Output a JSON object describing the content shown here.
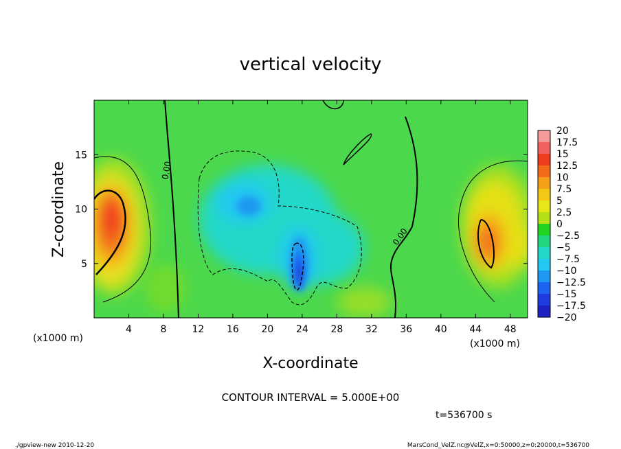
{
  "chart_data": {
    "type": "heatmap",
    "title": "vertical velocity",
    "xlabel": "X-coordinate",
    "ylabel": "Z-coordinate",
    "x_unit_label": "(x1000 m)",
    "y_unit_label": "(x1000 m)",
    "xlim": [
      0,
      50
    ],
    "ylim": [
      0,
      20
    ],
    "x_ticks": [
      4,
      8,
      12,
      16,
      20,
      24,
      28,
      32,
      36,
      40,
      44,
      48
    ],
    "y_ticks": [
      5,
      10,
      15
    ],
    "contour_interval_text": "CONTOUR INTERVAL = 5.000E+00",
    "contour_labels": [
      "0.00",
      "0.00"
    ],
    "colorbar": {
      "levels": [
        "20",
        "17.5",
        "15",
        "12.5",
        "10",
        "7.5",
        "5",
        "2.5",
        "0",
        "-2.5",
        "-5",
        "-7.5",
        "-10",
        "-12.5",
        "-15",
        "-17.5",
        "-20"
      ],
      "colors": [
        "#f49a9a",
        "#f26060",
        "#f03c1e",
        "#f26a1a",
        "#f5a018",
        "#f5c818",
        "#e6e618",
        "#b4e018",
        "#22d422",
        "#22d480",
        "#22d8c8",
        "#22c8f0",
        "#1e98f0",
        "#1e64f0",
        "#1e3ce0",
        "#1e22c0",
        "#6a1ebe"
      ]
    },
    "features": [
      {
        "kind": "updraft",
        "x": 2.5,
        "z": 8.5,
        "peak": 14
      },
      {
        "kind": "updraft",
        "x": 45.5,
        "z": 7.0,
        "peak": 12
      },
      {
        "kind": "downdraft",
        "x": 17.5,
        "z": 10.2,
        "peak": -8
      },
      {
        "kind": "downdraft",
        "x": 23.6,
        "z": 4.5,
        "peak": -14
      }
    ]
  },
  "footer": {
    "time": "t=536700 s",
    "program": "./gpview-new  2010-12-20",
    "source": "MarsCond_VelZ.nc@VelZ,x=0:50000,z=0:20000,t=536700"
  }
}
